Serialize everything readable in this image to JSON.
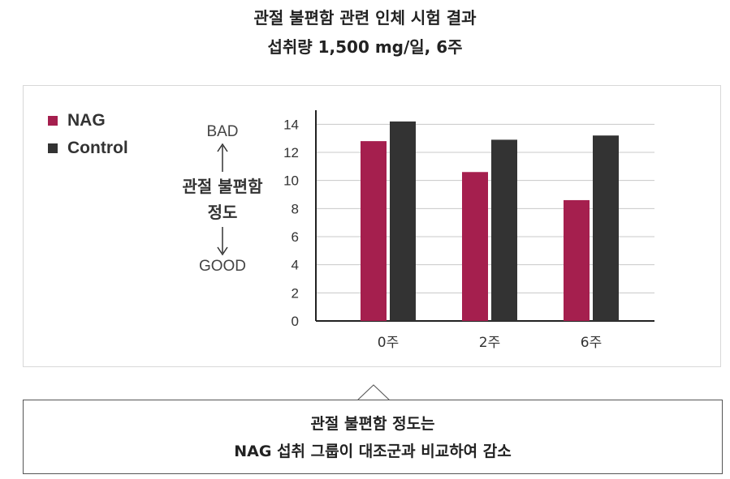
{
  "heading": {
    "line1": "관절 불편함 관련 인체 시험 결과",
    "line2": "섭취량 1,500 mg/일, 6주"
  },
  "legend": [
    {
      "label": "NAG",
      "color": "#a51f4e"
    },
    {
      "label": "Control",
      "color": "#333333"
    }
  ],
  "scale": {
    "top": "BAD",
    "middle_line1": "관절 불편함",
    "middle_line2": "정도",
    "bottom": "GOOD"
  },
  "chart_data": {
    "type": "bar",
    "categories": [
      "0주",
      "2주",
      "6주"
    ],
    "series": [
      {
        "name": "NAG",
        "values": [
          12.8,
          10.6,
          8.6
        ],
        "color": "#a51f4e"
      },
      {
        "name": "Control",
        "values": [
          14.2,
          12.9,
          13.2
        ],
        "color": "#333333"
      }
    ],
    "ylim": [
      0,
      15
    ],
    "yticks": [
      0,
      2,
      4,
      6,
      8,
      10,
      12,
      14
    ],
    "grid": true,
    "legend_position": "top-left"
  },
  "callout": {
    "line1": "관절 불편함 정도는",
    "line2": "NAG 섭취 그룹이 대조군과 비교하여 감소"
  }
}
